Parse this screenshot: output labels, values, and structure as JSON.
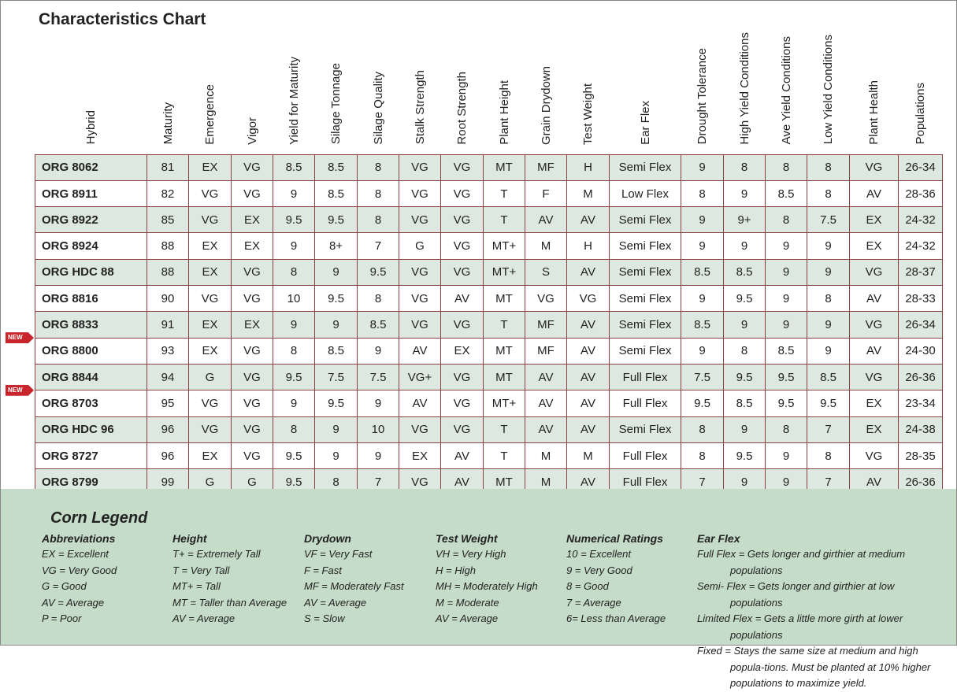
{
  "header": {
    "title": "Characteristics Chart"
  },
  "table": {
    "columns": [
      "Hybrid",
      "Maturity",
      "Emergence",
      "Vigor",
      "Yield for Maturity",
      "Silage Tonnage",
      "Silage Quality",
      "Stalk Strength",
      "Root Strength",
      "Plant Height",
      "Grain Drydown",
      "Test Weight",
      "Ear Flex",
      "Drought Tolerance",
      "High Yield Conditions",
      "Ave Yield Conditions",
      "Low Yield Conditions",
      "Plant Health",
      "Populations"
    ],
    "rows": [
      {
        "cells": [
          "ORG 8062",
          "81",
          "EX",
          "VG",
          "8.5",
          "8.5",
          "8",
          "VG",
          "VG",
          "MT",
          "MF",
          "H",
          "Semi Flex",
          "9",
          "8",
          "8",
          "8",
          "VG",
          "26-34"
        ]
      },
      {
        "cells": [
          "ORG 8911",
          "82",
          "VG",
          "VG",
          "9",
          "8.5",
          "8",
          "VG",
          "VG",
          "T",
          "F",
          "M",
          "Low Flex",
          "8",
          "9",
          "8.5",
          "8",
          "AV",
          "28-36"
        ]
      },
      {
        "cells": [
          "ORG 8922",
          "85",
          "VG",
          "EX",
          "9.5",
          "9.5",
          "8",
          "VG",
          "VG",
          "T",
          "AV",
          "AV",
          "Semi Flex",
          "9",
          "9+",
          "8",
          "7.5",
          "EX",
          "24-32"
        ]
      },
      {
        "cells": [
          "ORG 8924",
          "88",
          "EX",
          "EX",
          "9",
          "8+",
          "7",
          "G",
          "VG",
          "MT+",
          "M",
          "H",
          "Semi Flex",
          "9",
          "9",
          "9",
          "9",
          "EX",
          "24-32"
        ]
      },
      {
        "cells": [
          "ORG HDC 88",
          "88",
          "EX",
          "VG",
          "8",
          "9",
          "9.5",
          "VG",
          "VG",
          "MT+",
          "S",
          "AV",
          "Semi Flex",
          "8.5",
          "8.5",
          "9",
          "9",
          "VG",
          "28-37"
        ]
      },
      {
        "cells": [
          "ORG 8816",
          "90",
          "VG",
          "VG",
          "10",
          "9.5",
          "8",
          "VG",
          "AV",
          "MT",
          "VG",
          "VG",
          "Semi Flex",
          "9",
          "9.5",
          "9",
          "8",
          "AV",
          "28-33"
        ]
      },
      {
        "cells": [
          "ORG 8833",
          "91",
          "EX",
          "EX",
          "9",
          "9",
          "8.5",
          "VG",
          "VG",
          "T",
          "MF",
          "AV",
          "Semi Flex",
          "8.5",
          "9",
          "9",
          "9",
          "VG",
          "26-34"
        ]
      },
      {
        "badge": "NEW",
        "cells": [
          "ORG 8800",
          "93",
          "EX",
          "VG",
          "8",
          "8.5",
          "9",
          "AV",
          "EX",
          "MT",
          "MF",
          "AV",
          "Semi Flex",
          "9",
          "8",
          "8.5",
          "9",
          "AV",
          "24-30"
        ]
      },
      {
        "cells": [
          "ORG 8844",
          "94",
          "G",
          "VG",
          "9.5",
          "7.5",
          "7.5",
          "VG+",
          "VG",
          "MT",
          "AV",
          "AV",
          "Full Flex",
          "7.5",
          "9.5",
          "9.5",
          "8.5",
          "VG",
          "26-36"
        ]
      },
      {
        "badge": "NEW",
        "cells": [
          "ORG 8703",
          "95",
          "VG",
          "VG",
          "9",
          "9.5",
          "9",
          "AV",
          "VG",
          "MT+",
          "AV",
          "AV",
          "Full Flex",
          "9.5",
          "8.5",
          "9.5",
          "9.5",
          "EX",
          "23-34"
        ]
      },
      {
        "cells": [
          "ORG HDC 96",
          "96",
          "VG",
          "VG",
          "8",
          "9",
          "10",
          "VG",
          "VG",
          "T",
          "AV",
          "AV",
          "Semi Flex",
          "8",
          "9",
          "8",
          "7",
          "EX",
          "24-38"
        ]
      },
      {
        "cells": [
          "ORG 8727",
          "96",
          "EX",
          "VG",
          "9.5",
          "9",
          "9",
          "EX",
          "AV",
          "T",
          "M",
          "M",
          "Full Flex",
          "8",
          "9.5",
          "9",
          "8",
          "VG",
          "28-35"
        ]
      },
      {
        "cells": [
          "ORG 8799",
          "99",
          "G",
          "G",
          "9.5",
          "8",
          "7",
          "VG",
          "AV",
          "MT",
          "M",
          "AV",
          "Full Flex",
          "7",
          "9",
          "9",
          "7",
          "AV",
          "26-36"
        ]
      }
    ]
  },
  "legend": {
    "title": "Corn Legend",
    "groups": [
      {
        "title": "Abbreviations",
        "items": [
          "EX = Excellent",
          "VG = Very Good",
          "G = Good",
          "AV = Average",
          "P = Poor"
        ]
      },
      {
        "title": "Height",
        "items": [
          "T+ = Extremely Tall",
          "T = Very Tall",
          "MT+ = Tall",
          "MT = Taller than Average",
          "AV = Average"
        ]
      },
      {
        "title": "Drydown",
        "items": [
          "VF = Very Fast",
          "F = Fast",
          "MF = Moderately Fast",
          "AV = Average",
          "S = Slow"
        ]
      },
      {
        "title": "Test Weight",
        "items": [
          "VH = Very High",
          "H = High",
          "MH = Moderately High",
          "M = Moderate",
          "AV = Average"
        ]
      },
      {
        "title": "Numerical Ratings",
        "items": [
          "10 = Excellent",
          "9 = Very Good",
          "8 = Good",
          "7 = Average",
          "6= Less than Average"
        ]
      },
      {
        "title": "Ear Flex",
        "items": [
          "Full Flex = Gets longer and girthier at medium populations",
          "Semi- Flex = Gets longer and girthier at low populations",
          "Limited Flex = Gets a little more girth at lower populations",
          "Fixed = Stays the same size at medium and high popula-tions. Must be planted at 10% higher populations to maximize yield."
        ]
      }
    ]
  }
}
